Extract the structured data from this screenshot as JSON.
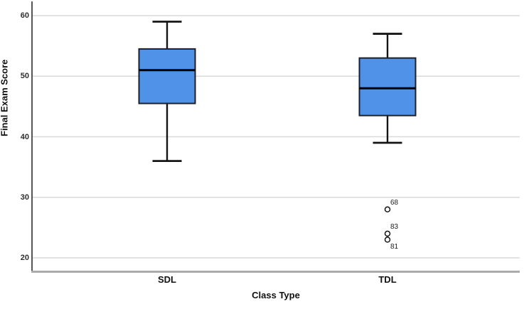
{
  "chart_data": {
    "type": "boxplot",
    "title": "",
    "xlabel": "Class Type",
    "ylabel": "Final Exam Score",
    "ylim": [
      17.6,
      62.4
    ],
    "yticks": [
      60,
      50,
      40,
      30,
      20
    ],
    "grid": "horizontal",
    "legend": "none",
    "categories": [
      "SDL",
      "TDL"
    ],
    "series": [
      {
        "category": "SDL",
        "whisker_low": 36,
        "q1": 45.5,
        "median": 51,
        "q3": 54.5,
        "whisker_high": 59,
        "outliers": []
      },
      {
        "category": "TDL",
        "whisker_low": 39,
        "q1": 43.5,
        "median": 48,
        "q3": 53,
        "whisker_high": 57,
        "outliers": [
          {
            "value": 28,
            "case_label": "68",
            "label_side": "above-right"
          },
          {
            "value": 24,
            "case_label": "83",
            "label_side": "above-right"
          },
          {
            "value": 23,
            "case_label": "81",
            "label_side": "below-right"
          }
        ]
      }
    ],
    "colors": {
      "box_fill": "#4f92e7",
      "box_border": "#1d2127",
      "median_line": "#000000",
      "whisker": "#141414",
      "gridline": "#d9d9d9",
      "y_axis_line": "#2b2b2b",
      "x_axis_line": "#ababab",
      "outlier_stroke": "#141414",
      "outlier_fill": "#ffffff",
      "background": "#ffffff"
    }
  }
}
